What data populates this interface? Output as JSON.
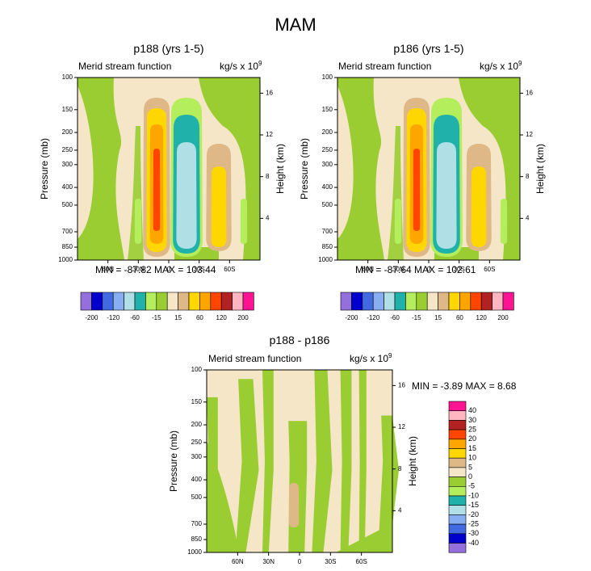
{
  "page_title": "MAM",
  "panels": [
    {
      "title": "p188 (yrs 1-5)",
      "left_label": "Merid stream function",
      "right_label": "kg/s x 10",
      "right_label_exp": "9",
      "stats": "MIN = -87.82  MAX = 103.44"
    },
    {
      "title": "p186 (yrs 1-5)",
      "left_label": "Merid stream function",
      "right_label": "kg/s x 10",
      "right_label_exp": "9",
      "stats": "MIN = -87.64  MAX = 102.61"
    },
    {
      "title": "p188 - p186",
      "left_label": "Merid stream function",
      "right_label": "kg/s x 10",
      "right_label_exp": "9",
      "stats": "MIN =  -3.89  MAX =   8.68"
    }
  ],
  "chart_data": [
    {
      "type": "heatmap",
      "subtype": "filled-contour",
      "title": "p188 (yrs 1-5)",
      "xlabel": "",
      "ylabel": "Pressure (mb)",
      "y2label": "Height (km)",
      "x_ticks": [
        "60N",
        "30N",
        "0",
        "30S",
        "60S"
      ],
      "x_tick_values": [
        60,
        30,
        0,
        -30,
        -60
      ],
      "xlim": [
        90,
        -90
      ],
      "y_ticks": [
        100,
        150,
        200,
        250,
        300,
        400,
        500,
        700,
        850,
        1000
      ],
      "ylim": [
        1000,
        100
      ],
      "y2_ticks": [
        4,
        8,
        12,
        16
      ],
      "min": -87.82,
      "max": 103.44,
      "color_levels": [
        -200,
        -120,
        -60,
        -15,
        15,
        60,
        120,
        200
      ],
      "colorbar_labels": [
        "-200",
        "-120",
        "-60",
        "-15",
        "15",
        "60",
        "120",
        "200"
      ]
    },
    {
      "type": "heatmap",
      "subtype": "filled-contour",
      "title": "p186 (yrs 1-5)",
      "xlabel": "",
      "ylabel": "Pressure (mb)",
      "y2label": "Height (km)",
      "x_ticks": [
        "60N",
        "30N",
        "0",
        "30S",
        "60S"
      ],
      "x_tick_values": [
        60,
        30,
        0,
        -30,
        -60
      ],
      "xlim": [
        90,
        -90
      ],
      "y_ticks": [
        100,
        150,
        200,
        250,
        300,
        400,
        500,
        700,
        850,
        1000
      ],
      "ylim": [
        1000,
        100
      ],
      "y2_ticks": [
        4,
        8,
        12,
        16
      ],
      "min": -87.64,
      "max": 102.61,
      "color_levels": [
        -200,
        -120,
        -60,
        -15,
        15,
        60,
        120,
        200
      ],
      "colorbar_labels": [
        "-200",
        "-120",
        "-60",
        "-15",
        "15",
        "60",
        "120",
        "200"
      ]
    },
    {
      "type": "heatmap",
      "subtype": "filled-contour",
      "title": "p188 - p186",
      "xlabel": "",
      "ylabel": "Pressure (mb)",
      "y2label": "Height (km)",
      "x_ticks": [
        "60N",
        "30N",
        "0",
        "30S",
        "60S"
      ],
      "x_tick_values": [
        60,
        30,
        0,
        -30,
        -60
      ],
      "xlim": [
        90,
        -90
      ],
      "y_ticks": [
        100,
        150,
        200,
        250,
        300,
        400,
        500,
        700,
        850,
        1000
      ],
      "ylim": [
        1000,
        100
      ],
      "y2_ticks": [
        4,
        8,
        12,
        16
      ],
      "min": -3.89,
      "max": 8.68,
      "color_levels": [
        -40,
        -30,
        -25,
        -20,
        -15,
        -10,
        -5,
        0,
        5,
        10,
        15,
        20,
        25,
        30,
        40
      ],
      "colorbar_labels": [
        "40",
        "30",
        "25",
        "20",
        "15",
        "10",
        "5",
        "0",
        "-5",
        "-10",
        "-15",
        "-20",
        "-25",
        "-30",
        "-40"
      ]
    }
  ],
  "palette": {
    "colors": [
      "#9370db",
      "#0000cd",
      "#4169e1",
      "#87aef0",
      "#b0e0e6",
      "#20b2aa",
      "#b4ee5c",
      "#9acd32",
      "#f5e6c8",
      "#deb887",
      "#ffd700",
      "#ffa500",
      "#ff4500",
      "#b22222",
      "#ffb6c1",
      "#ff1493"
    ]
  }
}
